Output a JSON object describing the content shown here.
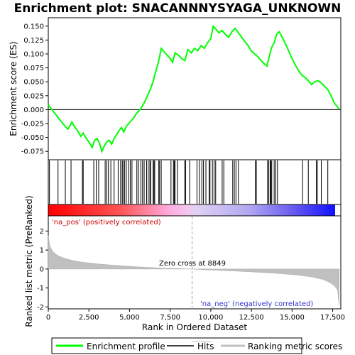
{
  "chart_data": {
    "type": "line",
    "title": "Enrichment plot: SNACANNNYSYAGA_UNKNOWN",
    "xlabel": "Rank in Ordered Dataset",
    "ylabel_top": "Enrichment score (ES)",
    "ylabel_bottom": "Ranked list metric (PreRanked)",
    "xlim": [
      0,
      18000
    ],
    "x_ticks": [
      0,
      2500,
      5000,
      7500,
      10000,
      12500,
      15000,
      17500
    ],
    "x_tick_labels": [
      "0",
      "2,500",
      "5,000",
      "7,500",
      "10,000",
      "12,500",
      "15,000",
      "17,500"
    ],
    "es_ylim": [
      -0.09,
      0.165
    ],
    "es_ticks": [
      -0.075,
      -0.05,
      -0.025,
      0.0,
      0.025,
      0.05,
      0.075,
      0.1,
      0.125,
      0.15
    ],
    "es_tick_labels": [
      "-0.075",
      "-0.050",
      "-0.025",
      "0.000",
      "0.025",
      "0.050",
      "0.075",
      "0.100",
      "0.125",
      "0.150"
    ],
    "metric_ylim": [
      -2.1,
      2.8
    ],
    "metric_ticks": [
      -2,
      -1,
      0,
      1,
      2
    ],
    "metric_tick_labels": [
      "-2",
      "-1",
      "0",
      "1",
      "2"
    ],
    "series": [
      {
        "name": "Enrichment profile",
        "color": "#00ff00",
        "x": [
          0,
          150,
          350,
          550,
          700,
          900,
          1050,
          1200,
          1350,
          1450,
          1600,
          1800,
          2000,
          2150,
          2300,
          2500,
          2700,
          2850,
          3000,
          3150,
          3300,
          3450,
          3600,
          3750,
          3900,
          4050,
          4200,
          4350,
          4500,
          4650,
          4800,
          4950,
          5100,
          5250,
          5400,
          5550,
          5700,
          5850,
          6000,
          6150,
          6300,
          6450,
          6550,
          6650,
          6750,
          6850,
          6950,
          7100,
          7300,
          7500,
          7650,
          7800,
          8000,
          8200,
          8400,
          8600,
          8800,
          9000,
          9200,
          9400,
          9600,
          9800,
          10000,
          10150,
          10300,
          10500,
          10700,
          10900,
          11100,
          11300,
          11500,
          11700,
          11900,
          12100,
          12300,
          12500,
          12700,
          12900,
          13100,
          13300,
          13450,
          13600,
          13750,
          13900,
          14050,
          14200,
          14400,
          14600,
          14800,
          15000,
          15200,
          15400,
          15600,
          15800,
          16000,
          16200,
          16400,
          16600,
          16800,
          17000,
          17200,
          17400,
          17600,
          17900
        ],
        "y": [
          0.009,
          0.003,
          -0.005,
          -0.012,
          -0.018,
          -0.025,
          -0.03,
          -0.035,
          -0.028,
          -0.022,
          -0.03,
          -0.038,
          -0.048,
          -0.042,
          -0.05,
          -0.058,
          -0.068,
          -0.055,
          -0.052,
          -0.06,
          -0.075,
          -0.065,
          -0.058,
          -0.055,
          -0.062,
          -0.052,
          -0.045,
          -0.038,
          -0.032,
          -0.04,
          -0.03,
          -0.025,
          -0.02,
          -0.015,
          -0.008,
          -0.003,
          0.002,
          0.01,
          0.018,
          0.028,
          0.038,
          0.05,
          0.062,
          0.072,
          0.082,
          0.095,
          0.11,
          0.105,
          0.098,
          0.092,
          0.085,
          0.102,
          0.098,
          0.092,
          0.088,
          0.108,
          0.102,
          0.11,
          0.106,
          0.115,
          0.11,
          0.12,
          0.128,
          0.15,
          0.145,
          0.138,
          0.142,
          0.135,
          0.13,
          0.14,
          0.146,
          0.138,
          0.13,
          0.122,
          0.115,
          0.105,
          0.1,
          0.095,
          0.088,
          0.082,
          0.078,
          0.096,
          0.112,
          0.12,
          0.135,
          0.14,
          0.13,
          0.118,
          0.105,
          0.092,
          0.08,
          0.07,
          0.062,
          0.058,
          0.052,
          0.045,
          0.05,
          0.052,
          0.048,
          0.042,
          0.036,
          0.025,
          0.012,
          0.001
        ]
      }
    ],
    "hits": [
      70,
      600,
      1050,
      1400,
      2100,
      2150,
      2800,
      2950,
      3100,
      3500,
      3600,
      3700,
      3850,
      4050,
      4300,
      4450,
      4550,
      4600,
      4700,
      4800,
      4950,
      5050,
      5150,
      5450,
      5550,
      5700,
      5800,
      5900,
      6050,
      6150,
      6250,
      6300,
      6450,
      6500,
      6550,
      6800,
      6850,
      6950,
      7550,
      7700,
      7750,
      7800,
      7950,
      8400,
      8450,
      8700,
      9150,
      9300,
      9450,
      9550,
      9700,
      9900,
      9950,
      10100,
      10200,
      10300,
      10700,
      10800,
      11350,
      11450,
      11550,
      11700,
      12750,
      12800,
      13500,
      13550,
      13650,
      13700,
      13750,
      13900,
      14000,
      14100,
      15650,
      16000,
      16500,
      16550,
      16800,
      17200
    ],
    "metric_curve": {
      "x": [
        0,
        100,
        300,
        600,
        1000,
        1500,
        2000,
        3000,
        4000,
        5000,
        6000,
        7000,
        8000,
        8849,
        9500,
        10500,
        11500,
        12500,
        13500,
        14500,
        15500,
        16300,
        16900,
        17300,
        17600,
        17800,
        17900
      ],
      "y": [
        1.75,
        1.2,
        0.9,
        0.7,
        0.56,
        0.45,
        0.37,
        0.27,
        0.2,
        0.14,
        0.09,
        0.05,
        0.02,
        0.0,
        -0.03,
        -0.07,
        -0.11,
        -0.15,
        -0.2,
        -0.26,
        -0.34,
        -0.43,
        -0.55,
        -0.7,
        -0.88,
        -1.1,
        -1.9
      ]
    },
    "zero_cross": 8849,
    "zero_cross_label": "Zero cross at 8849",
    "pos_label": "'na_pos' (positively correlated)",
    "neg_label": "'na_neg' (negatively correlated)",
    "pos_color": "#cc0000",
    "neg_color": "#3333cc",
    "legend": [
      {
        "label": "Enrichment profile",
        "color": "#00ff00"
      },
      {
        "label": "Hits",
        "color": "#000000"
      },
      {
        "label": "Ranking metric scores",
        "color": "#c0c0c0"
      }
    ]
  }
}
